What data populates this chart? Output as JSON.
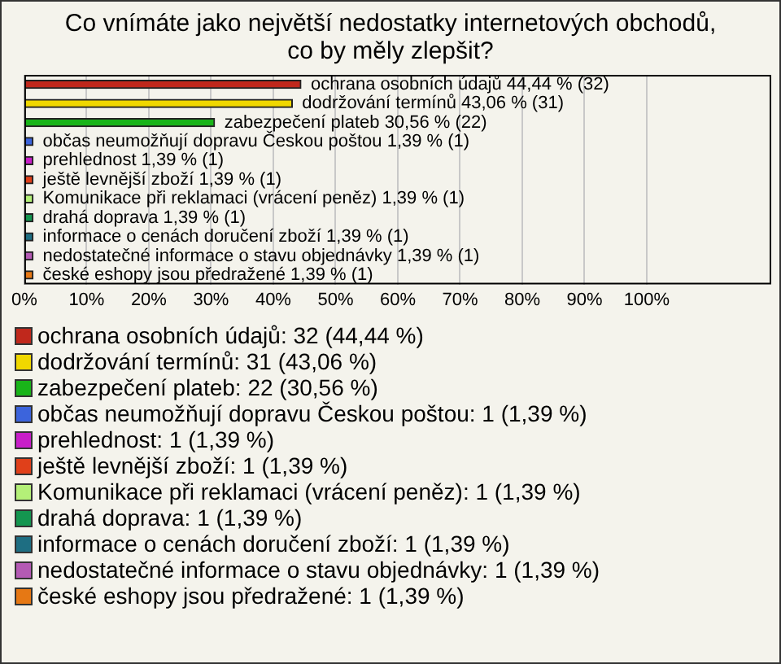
{
  "chart_data": {
    "type": "bar",
    "orientation": "horizontal",
    "title": "Co vnímáte jako největší nedostatky internetových obchodů, co by měly zlepšit?",
    "categories": [
      "ochrana osobních údajů",
      "dodržování termínů",
      "zabezpečení plateb",
      "občas neumožňují dopravu Českou poštou",
      "prehlednost",
      "ještě levnější zboží",
      "Komunikace při reklamaci (vrácení peněz)",
      "drahá doprava",
      "informace o cenách doručení zboží",
      "nedostatečné informace o stavu objednávky",
      "české eshopy jsou předražené"
    ],
    "values": [
      44.44,
      43.06,
      30.56,
      1.39,
      1.39,
      1.39,
      1.39,
      1.39,
      1.39,
      1.39,
      1.39
    ],
    "value_labels": [
      "44,44 % (32)",
      "43,06 % (31)",
      "30,56 % (22)",
      "1,39 % (1)",
      "1,39 % (1)",
      "1,39 % (1)",
      "1,39 % (1)",
      "1,39 % (1)",
      "1,39 % (1)",
      "1,39 % (1)",
      "1,39 % (1)"
    ],
    "colors": [
      "#c0281c",
      "#f0d800",
      "#19b419",
      "#3c64dc",
      "#c81ec8",
      "#e0401a",
      "#b4f078",
      "#149650",
      "#1e6e82",
      "#b45ab4",
      "#e67814"
    ],
    "xlim": [
      0,
      120
    ],
    "xticks": [
      {
        "value": 0,
        "label": "0%"
      },
      {
        "value": 10,
        "label": "10%"
      },
      {
        "value": 20,
        "label": "20%"
      },
      {
        "value": 30,
        "label": "30%"
      },
      {
        "value": 40,
        "label": "40%"
      },
      {
        "value": 50,
        "label": "50%"
      },
      {
        "value": 60,
        "label": "60%"
      },
      {
        "value": 70,
        "label": "70%"
      },
      {
        "value": 80,
        "label": "80%"
      },
      {
        "value": 90,
        "label": "90%"
      },
      {
        "value": 100,
        "label": "100%"
      }
    ],
    "grid": "x",
    "tick_labels": "x",
    "annotations": [
      "ochrana osobních údajů: 32 (44,44 %)",
      "dodržování termínů: 31 (43,06 %)",
      "zabezpečení plateb: 22 (30,56 %)",
      "občas neumožňují dopravu Českou poštou: 1 (1,39 %)",
      "prehlednost: 1 (1,39 %)",
      "ještě levnější zboží: 1 (1,39 %)",
      "Komunikace při reklamaci (vrácení peněz): 1 (1,39 %)",
      "drahá doprava: 1 (1,39 %)",
      "informace o cenách doručení zboží: 1 (1,39 %)",
      "nedostatečné informace o stavu objednávky: 1 (1,39 %)",
      "české eshopy jsou předražené: 1 (1,39 %)"
    ]
  }
}
